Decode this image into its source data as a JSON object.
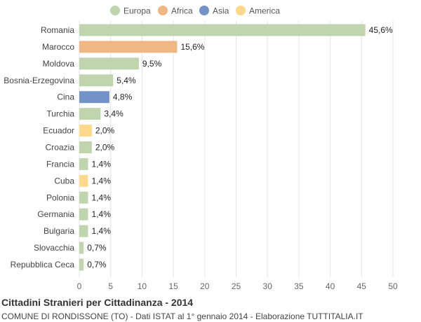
{
  "chart_data": {
    "type": "bar",
    "orientation": "horizontal",
    "title": "Cittadini Stranieri per Cittadinanza - 2014",
    "subtitle": "COMUNE DI RONDISSONE (TO) - Dati ISTAT al 1° gennaio 2014 - Elaborazione TUTTITALIA.IT",
    "xlim": [
      0,
      50
    ],
    "xticks": [
      0,
      5,
      10,
      15,
      20,
      25,
      30,
      35,
      40,
      45,
      50
    ],
    "grid": true,
    "legend_position": "top",
    "legend": [
      {
        "name": "Europa",
        "color": "#c0d4ad"
      },
      {
        "name": "Africa",
        "color": "#efb783"
      },
      {
        "name": "Asia",
        "color": "#7393c8"
      },
      {
        "name": "America",
        "color": "#fdd98b"
      }
    ],
    "categories": [
      "Romania",
      "Marocco",
      "Moldova",
      "Bosnia-Erzegovina",
      "Cina",
      "Turchia",
      "Ecuador",
      "Croazia",
      "Francia",
      "Cuba",
      "Polonia",
      "Germania",
      "Bulgaria",
      "Slovacchia",
      "Repubblica Ceca"
    ],
    "values": [
      45.6,
      15.6,
      9.5,
      5.4,
      4.8,
      3.4,
      2.0,
      2.0,
      1.4,
      1.4,
      1.4,
      1.4,
      1.4,
      0.7,
      0.7
    ],
    "value_labels": [
      "45,6%",
      "15,6%",
      "9,5%",
      "5,4%",
      "4,8%",
      "3,4%",
      "2,0%",
      "2,0%",
      "1,4%",
      "1,4%",
      "1,4%",
      "1,4%",
      "1,4%",
      "0,7%",
      "0,7%"
    ],
    "groups": [
      "Europa",
      "Africa",
      "Europa",
      "Europa",
      "Asia",
      "Europa",
      "America",
      "Europa",
      "Europa",
      "America",
      "Europa",
      "Europa",
      "Europa",
      "Europa",
      "Europa"
    ]
  }
}
